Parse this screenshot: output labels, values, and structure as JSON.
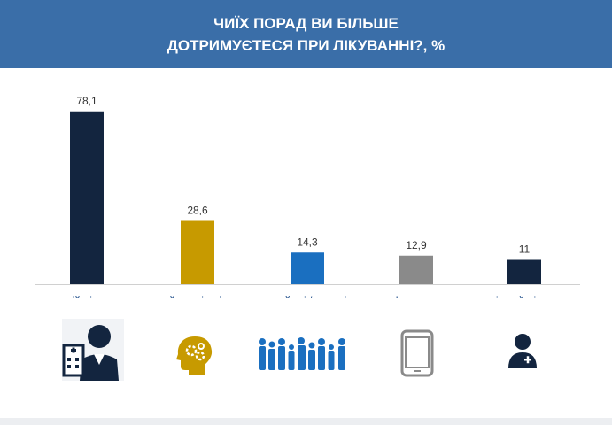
{
  "header": {
    "title_line1": "ЧИЇХ ПОРАД ВИ БІЛЬШЕ",
    "title_line2": "ДОТРИМУЄТЕСЯ ПРИ ЛІКУВАННІ?, %"
  },
  "colors": {
    "header_bg": "#3a6ea8",
    "bar_doctor": "#13253f",
    "bar_experience": "#c79a00",
    "bar_friends": "#1a6fc0",
    "bar_internet": "#8a8a8a",
    "bar_other_doctor": "#13253f"
  },
  "chart_data": {
    "type": "bar",
    "title": "ЧИЇХ ПОРАД ВИ БІЛЬШЕ ДОТРИМУЄТЕСЯ ПРИ ЛІКУВАННІ?, %",
    "categories": [
      "мій лікар",
      "власний досвід лікування",
      "знайомі / родичі",
      "Інтернет",
      "інший лікар"
    ],
    "values": [
      78.1,
      28.6,
      14.3,
      12.9,
      11
    ],
    "value_labels": [
      "78,1",
      "28,6",
      "14,3",
      "12,9",
      "11"
    ],
    "bar_colors": [
      "#13253f",
      "#c79a00",
      "#1a6fc0",
      "#8a8a8a",
      "#13253f"
    ],
    "icons": [
      "doctor-hospital-icon",
      "brain-gears-icon",
      "family-group-icon",
      "smartphone-icon",
      "other-doctor-icon"
    ],
    "xlabel": "",
    "ylabel": "",
    "ylim": [
      0,
      80
    ],
    "grid": false,
    "legend": "none"
  }
}
